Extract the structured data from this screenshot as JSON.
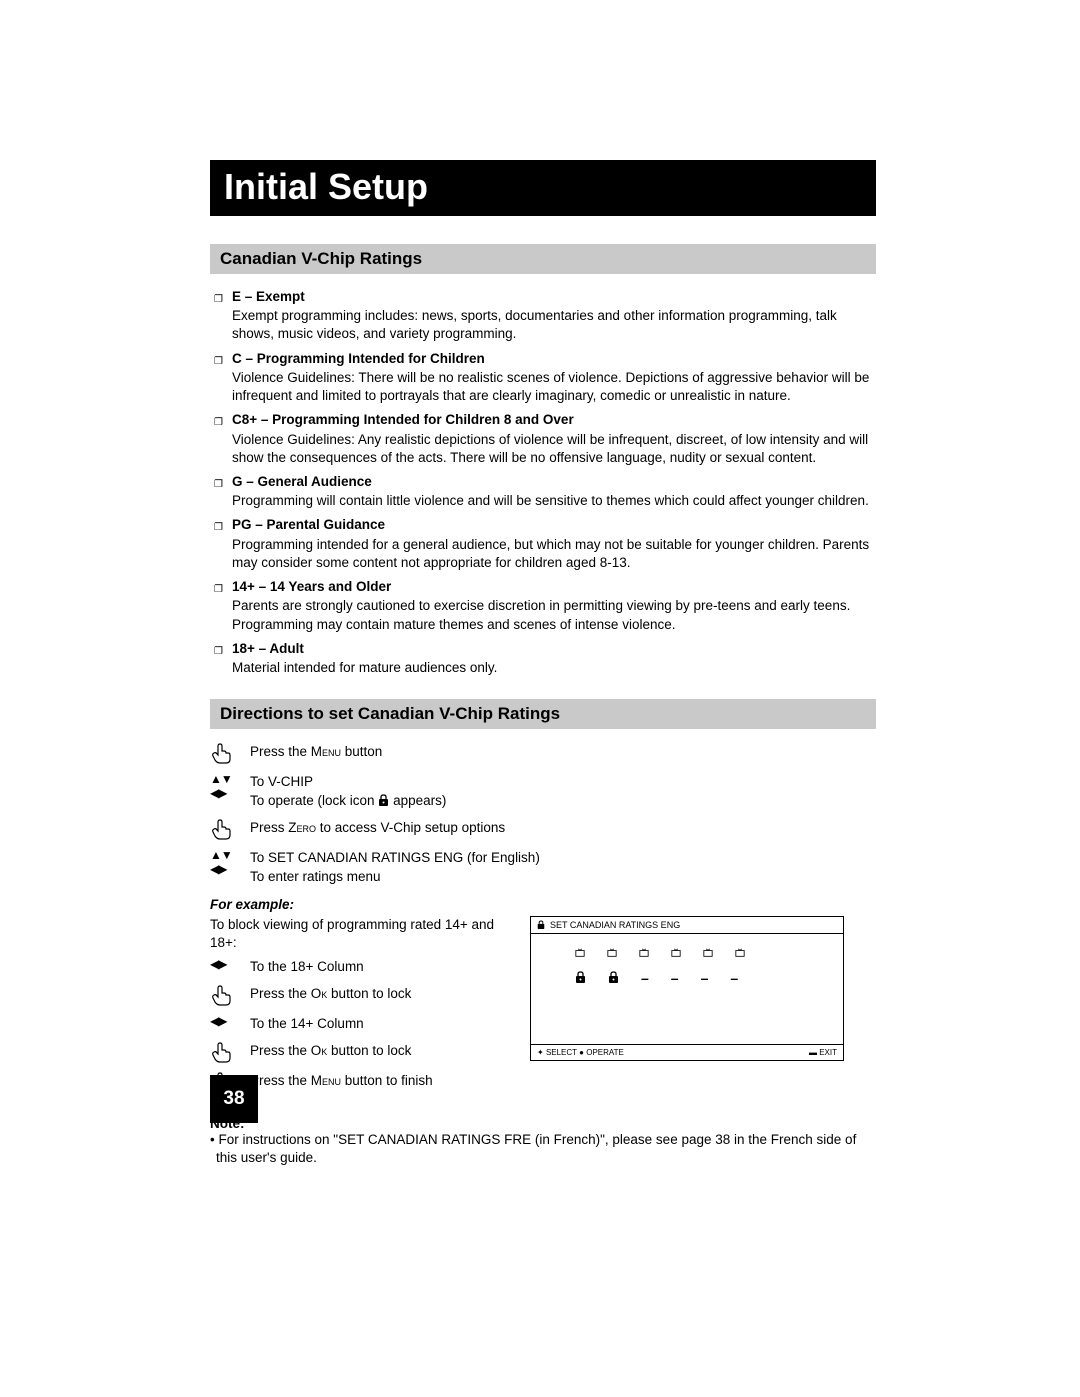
{
  "page_number": "38",
  "title": "Initial Setup",
  "section1": {
    "header": "Canadian V-Chip Ratings",
    "items": [
      {
        "title": "E – Exempt",
        "desc": "Exempt programming includes: news, sports, documentaries and other information programming, talk shows, music videos, and variety programming."
      },
      {
        "title": "C – Programming Intended for Children",
        "desc": "Violence Guidelines: There will be no realistic scenes of violence. Depictions of aggressive behavior will be infrequent and limited to portrayals that are clearly imaginary, comedic or unrealistic in nature."
      },
      {
        "title": "C8+ – Programming Intended for Children 8 and Over",
        "desc": "Violence Guidelines: Any realistic depictions of violence will be infrequent, discreet, of low intensity and will show the consequences of the acts. There will be no offensive language, nudity or sexual content."
      },
      {
        "title": "G – General Audience",
        "desc": "Programming will contain little violence and will be sensitive to themes which could affect younger children."
      },
      {
        "title": "PG – Parental Guidance",
        "desc": "Programming intended for a general audience, but which may not be suitable for younger children. Parents may consider some content not appropriate for children aged 8-13."
      },
      {
        "title": "14+ – 14 Years and Older",
        "desc": "Parents are strongly cautioned to exercise discretion in permitting viewing by pre-teens and early teens. Programming may contain mature themes and scenes of intense violence."
      },
      {
        "title": "18+ – Adult",
        "desc": "Material intended for mature audiences only."
      }
    ]
  },
  "section2": {
    "header": "Directions to set Canadian V-Chip Ratings",
    "steps": {
      "s1_pre": "Press the ",
      "s1_btn": "Menu",
      "s1_post": " button",
      "s2a": "To V-CHIP",
      "s2b_pre": "To operate (lock icon ",
      "s2b_post": " appears)",
      "s3_pre": "Press ",
      "s3_btn": "Zero",
      "s3_post": " to access V-Chip setup options",
      "s4a": "To SET CANADIAN RATINGS ENG (for English)",
      "s4b": "To enter ratings menu"
    },
    "for_example": "For example:",
    "ex_intro": "To block viewing of programming rated 14+ and 18+:",
    "ex": {
      "e1": "To the 18+ Column",
      "e2_pre": "Press the ",
      "e2_btn": "Ok",
      "e2_post": " button to lock",
      "e3": "To the 14+ Column",
      "e4_pre": "Press the ",
      "e4_btn": "Ok",
      "e4_post": " button to lock",
      "e5_pre": "Press the ",
      "e5_btn": "Menu",
      "e5_post": " button to finish"
    },
    "screen": {
      "top": "SET CANADIAN RATINGS ENG",
      "bot_left_select": "SELECT",
      "bot_left_operate": "OPERATE",
      "bot_right": "EXIT",
      "locks": [
        "lock",
        "lock",
        "dash",
        "dash",
        "dash",
        "dash"
      ]
    },
    "note_label": "Note:",
    "note_text": "• For instructions on \"SET CANADIAN RATINGS FRE (in French)\", please see page 38 in the French side of this user's guide."
  }
}
